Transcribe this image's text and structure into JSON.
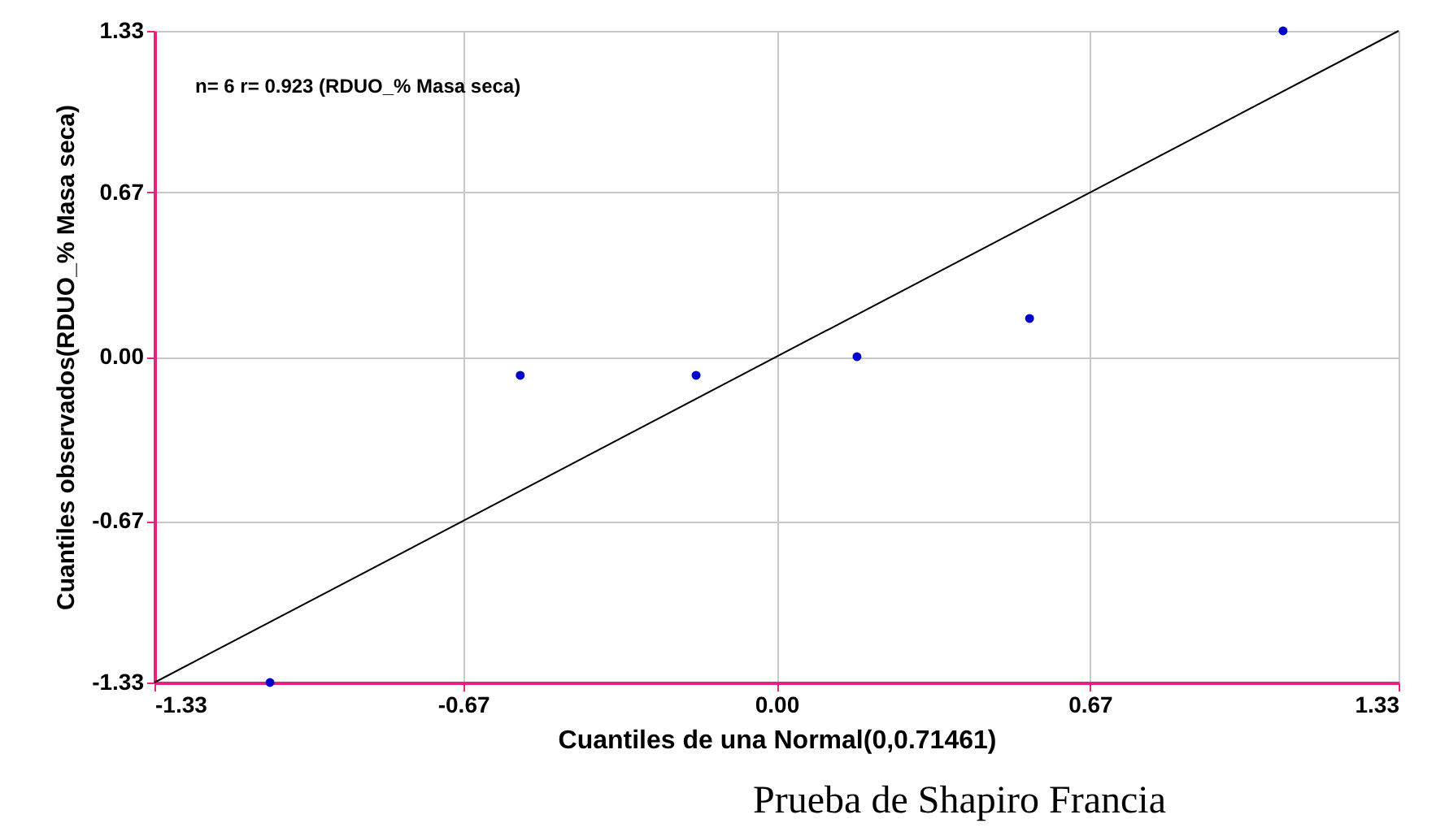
{
  "chart_data": {
    "type": "scatter",
    "xlabel": "Cuantiles de una Normal(0,0.71461)",
    "ylabel": "Cuantiles observados(RDUO_% Masa seca)",
    "annotations": [
      "n= 6 r= 0.923 (RDUO_% Masa seca)",
      "Prueba de Shapiro Francia"
    ],
    "xlim": [
      -1.33,
      1.33
    ],
    "ylim": [
      -1.33,
      1.33
    ],
    "xticks": [
      -1.33,
      -0.67,
      {
        "value": 0,
        "label": "0.00"
      },
      0.67,
      1.33
    ],
    "yticks": [
      -1.33,
      -0.67,
      {
        "value": 0,
        "label": "0.00"
      },
      0.67,
      1.33
    ],
    "grid": true,
    "series": [
      {
        "marker": "circle",
        "color": "#0000cc",
        "x": [
          -1.083,
          -0.548,
          -0.172,
          0.172,
          0.541,
          1.083
        ],
        "values": [
          -1.33,
          -0.076,
          -0.076,
          0.0,
          0.156,
          1.33
        ]
      },
      {
        "type": "line",
        "color": "#000000",
        "x": [
          -1.33,
          1.33
        ],
        "values": [
          -1.33,
          1.33
        ],
        "line_style": "solid"
      }
    ]
  }
}
